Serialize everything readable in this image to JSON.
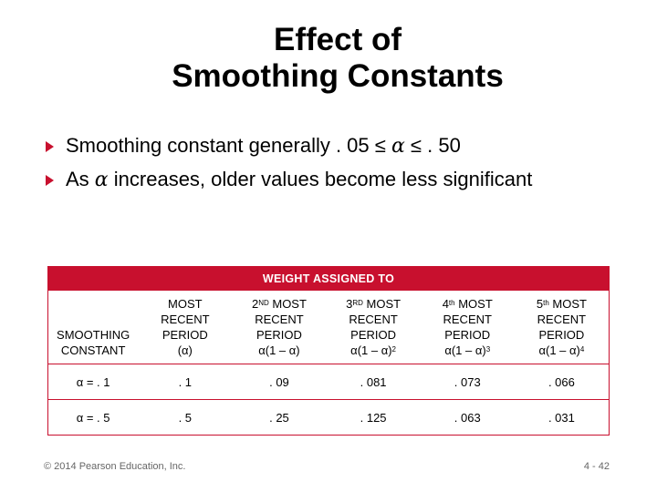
{
  "title": {
    "line1": "Effect of",
    "line2": "Smoothing Constants"
  },
  "bullets": {
    "b1": {
      "pre": "Smoothing constant generally . 05 ≤ ",
      "symbol": "α",
      "post": " ≤ . 50"
    },
    "b2": {
      "pre": "As ",
      "symbol": "α",
      "post": " increases, older values become less significant"
    }
  },
  "table": {
    "header": "WEIGHT ASSIGNED TO",
    "columns": {
      "c0": {
        "l1": "SMOOTHING",
        "l2": "CONSTANT"
      },
      "c1": {
        "l1": "MOST",
        "l2": "RECENT",
        "l3": "PERIOD",
        "l4": "(α)"
      },
      "c2": {
        "ord": "2",
        "sup": "ND",
        "l1": " MOST",
        "l2": "RECENT",
        "l3": "PERIOD",
        "l4": "α(1 – α)",
        "exp": ""
      },
      "c3": {
        "ord": "3",
        "sup": "RD",
        "l1": " MOST",
        "l2": "RECENT",
        "l3": "PERIOD",
        "l4": "α(1 – α)",
        "exp": "2"
      },
      "c4": {
        "ord": "4",
        "sup": "th",
        "l1": "  MOST",
        "l2": "RECENT",
        "l3": "PERIOD",
        "l4": "α(1 – α)",
        "exp": "3"
      },
      "c5": {
        "ord": "5",
        "sup": "th",
        "l1": "  MOST",
        "l2": "RECENT",
        "l3": "PERIOD",
        "l4": "α(1 – α)",
        "exp": "4"
      }
    },
    "rows": [
      {
        "label": "α = . 1",
        "v1": ". 1",
        "v2": ". 09",
        "v3": ". 081",
        "v4": ". 073",
        "v5": ". 066"
      },
      {
        "label": "α = . 5",
        "v1": ". 5",
        "v2": ". 25",
        "v3": ". 125",
        "v4": ". 063",
        "v5": ". 031"
      }
    ]
  },
  "footer": {
    "copyright": "© 2014 Pearson Education, Inc.",
    "page": "4 - 42"
  },
  "colors": {
    "accent": "#c8102e"
  }
}
